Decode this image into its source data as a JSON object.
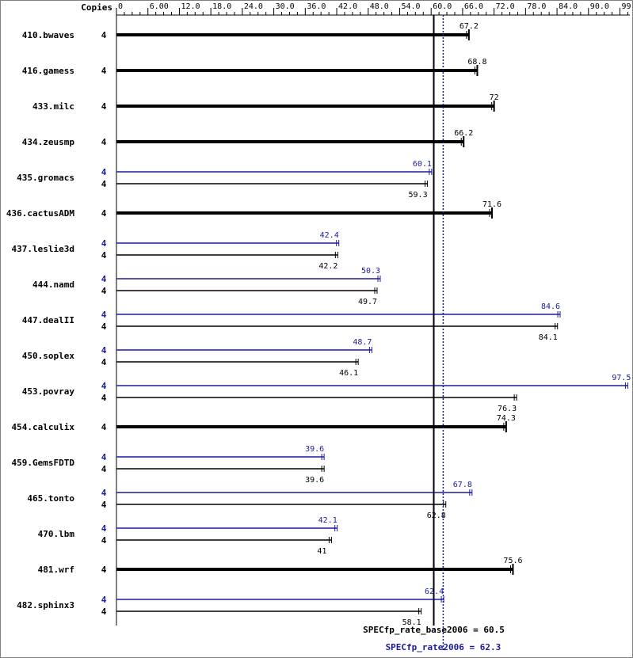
{
  "chart_data": {
    "type": "bar",
    "header": {
      "copies_label": "Copies"
    },
    "x_ticks": [
      "0",
      "6.00",
      "12.0",
      "18.0",
      "24.0",
      "30.0",
      "36.0",
      "42.0",
      "48.0",
      "54.0",
      "60.0",
      "66.0",
      "72.0",
      "78.0",
      "84.0",
      "90.0",
      "99.0"
    ],
    "xlim": [
      0,
      97.5
    ],
    "colors": {
      "base": "#000000",
      "peak": "#1a1aa0"
    },
    "benchmarks": [
      {
        "name": "410.bwaves",
        "base_copies": "4",
        "base": 67.2
      },
      {
        "name": "416.gamess",
        "base_copies": "4",
        "base": 68.8
      },
      {
        "name": "433.milc",
        "base_copies": "4",
        "base": 72.0
      },
      {
        "name": "434.zeusmp",
        "base_copies": "4",
        "base": 66.2
      },
      {
        "name": "435.gromacs",
        "peak_copies": "4",
        "peak": 60.1,
        "base_copies": "4",
        "base": 59.3
      },
      {
        "name": "436.cactusADM",
        "base_copies": "4",
        "base": 71.6
      },
      {
        "name": "437.leslie3d",
        "peak_copies": "4",
        "peak": 42.4,
        "base_copies": "4",
        "base": 42.2
      },
      {
        "name": "444.namd",
        "peak_copies": "4",
        "peak": 50.3,
        "base_copies": "4",
        "base": 49.7
      },
      {
        "name": "447.dealII",
        "peak_copies": "4",
        "peak": 84.6,
        "base_copies": "4",
        "base": 84.1
      },
      {
        "name": "450.soplex",
        "peak_copies": "4",
        "peak": 48.7,
        "base_copies": "4",
        "base": 46.1
      },
      {
        "name": "453.povray",
        "peak_copies": "4",
        "peak": 97.5,
        "base_copies": "4",
        "base": 76.3
      },
      {
        "name": "454.calculix",
        "base_copies": "4",
        "base": 74.3
      },
      {
        "name": "459.GemsFDTD",
        "peak_copies": "4",
        "peak": 39.6,
        "base_copies": "4",
        "base": 39.6
      },
      {
        "name": "465.tonto",
        "peak_copies": "4",
        "peak": 67.8,
        "base_copies": "4",
        "base": 62.8
      },
      {
        "name": "470.lbm",
        "peak_copies": "4",
        "peak": 42.1,
        "base_copies": "4",
        "base": 41.0
      },
      {
        "name": "481.wrf",
        "base_copies": "4",
        "base": 75.6
      },
      {
        "name": "482.sphinx3",
        "peak_copies": "4",
        "peak": 62.4,
        "base_copies": "4",
        "base": 58.1
      }
    ],
    "summary": {
      "base_label": "SPECfp_rate_base2006 = 60.5",
      "base_value": 60.5,
      "peak_label": "SPECfp_rate2006 = 62.3",
      "peak_value": 62.3
    }
  }
}
